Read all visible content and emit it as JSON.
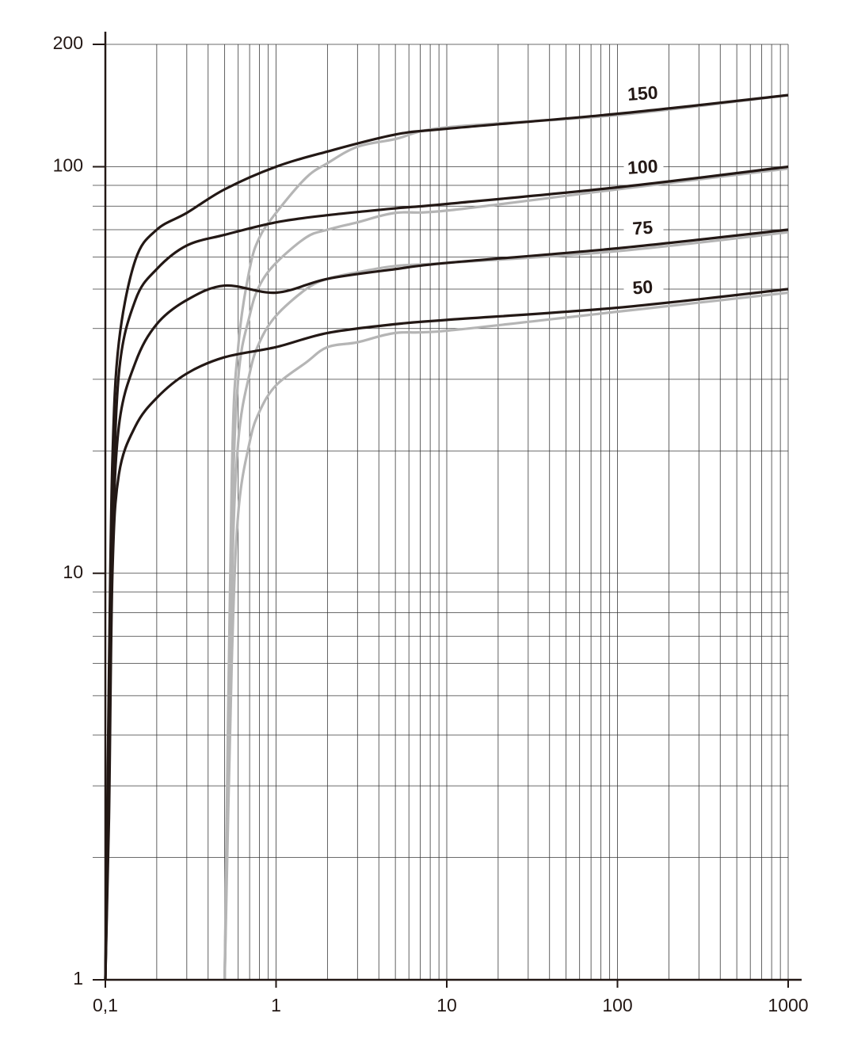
{
  "chart_data": {
    "type": "line",
    "xlog": true,
    "ylog": true,
    "grid": true,
    "xlim": [
      0.1,
      1000
    ],
    "ylim": [
      1,
      200
    ],
    "xticks": [
      {
        "value": 0.1,
        "label": "0,1"
      },
      1,
      10,
      100,
      1000
    ],
    "yticks": [
      1,
      10,
      100,
      200
    ],
    "xgrid": [
      0.2,
      0.3,
      0.4,
      0.5,
      0.6,
      0.7,
      0.8,
      0.9,
      1,
      2,
      3,
      4,
      5,
      6,
      7,
      8,
      9,
      10,
      20,
      30,
      40,
      50,
      60,
      70,
      80,
      90,
      100,
      200,
      300,
      400,
      500,
      600,
      700,
      800,
      900,
      1000
    ],
    "ygrid": [
      2,
      3,
      4,
      5,
      6,
      7,
      8,
      9,
      10,
      20,
      30,
      40,
      50,
      60,
      70,
      80,
      90,
      100,
      200
    ],
    "series": [
      {
        "color": "#b5b5b5",
        "x": [
          0.5,
          0.55,
          0.6,
          0.7,
          0.8,
          1,
          1.5,
          2,
          3,
          5,
          10,
          100,
          1000
        ],
        "values": [
          1,
          17,
          36,
          56,
          67,
          77,
          94,
          102,
          112,
          117,
          125,
          134,
          150
        ]
      },
      {
        "color": "#b5b5b5",
        "x": [
          0.5,
          0.55,
          0.6,
          0.7,
          0.8,
          1,
          1.5,
          2,
          3,
          5,
          10,
          100,
          1000
        ],
        "values": [
          1,
          12,
          30,
          43,
          51,
          58,
          67,
          70,
          73,
          77,
          78,
          88,
          99
        ]
      },
      {
        "color": "#b5b5b5",
        "x": [
          0.5,
          0.55,
          0.6,
          0.7,
          0.8,
          1,
          1.5,
          2,
          3,
          5,
          10,
          100,
          1000
        ],
        "values": [
          1,
          9,
          21,
          31,
          37,
          43,
          50,
          53,
          55,
          57,
          58,
          62,
          69
        ]
      },
      {
        "color": "#b5b5b5",
        "x": [
          0.5,
          0.55,
          0.6,
          0.7,
          0.8,
          1,
          1.5,
          2,
          3,
          5,
          10,
          100,
          1000
        ],
        "values": [
          1,
          6,
          14,
          21,
          25,
          29,
          33,
          36,
          37,
          39,
          39.5,
          44,
          49
        ]
      },
      {
        "name": "150",
        "color": "#231815",
        "x": [
          0.1,
          0.105,
          0.11,
          0.12,
          0.15,
          0.2,
          0.3,
          0.5,
          1,
          2,
          5,
          10,
          100,
          1000
        ],
        "values": [
          1,
          5.7,
          19,
          37,
          59,
          70,
          77,
          88,
          100,
          109,
          120,
          124,
          135,
          150
        ]
      },
      {
        "name": "100",
        "color": "#231815",
        "x": [
          0.1,
          0.105,
          0.11,
          0.12,
          0.15,
          0.2,
          0.3,
          0.5,
          1,
          2,
          5,
          10,
          100,
          1000
        ],
        "values": [
          1,
          3.5,
          12,
          31,
          47,
          56,
          64,
          68,
          73,
          76,
          79,
          81,
          89,
          100
        ]
      },
      {
        "name": "75",
        "color": "#231815",
        "x": [
          0.1,
          0.105,
          0.11,
          0.12,
          0.15,
          0.2,
          0.3,
          0.5,
          1,
          2,
          5,
          10,
          100,
          1000
        ],
        "values": [
          1,
          3,
          11,
          23,
          33,
          41,
          47,
          51,
          49,
          53,
          56,
          58,
          63,
          70
        ]
      },
      {
        "name": "50",
        "color": "#231815",
        "x": [
          0.1,
          0.105,
          0.11,
          0.12,
          0.15,
          0.2,
          0.3,
          0.5,
          1,
          2,
          5,
          10,
          100,
          1000
        ],
        "values": [
          1,
          2.5,
          10,
          17.5,
          23,
          27,
          31,
          34,
          36,
          39,
          41,
          42,
          45,
          50
        ]
      }
    ]
  }
}
